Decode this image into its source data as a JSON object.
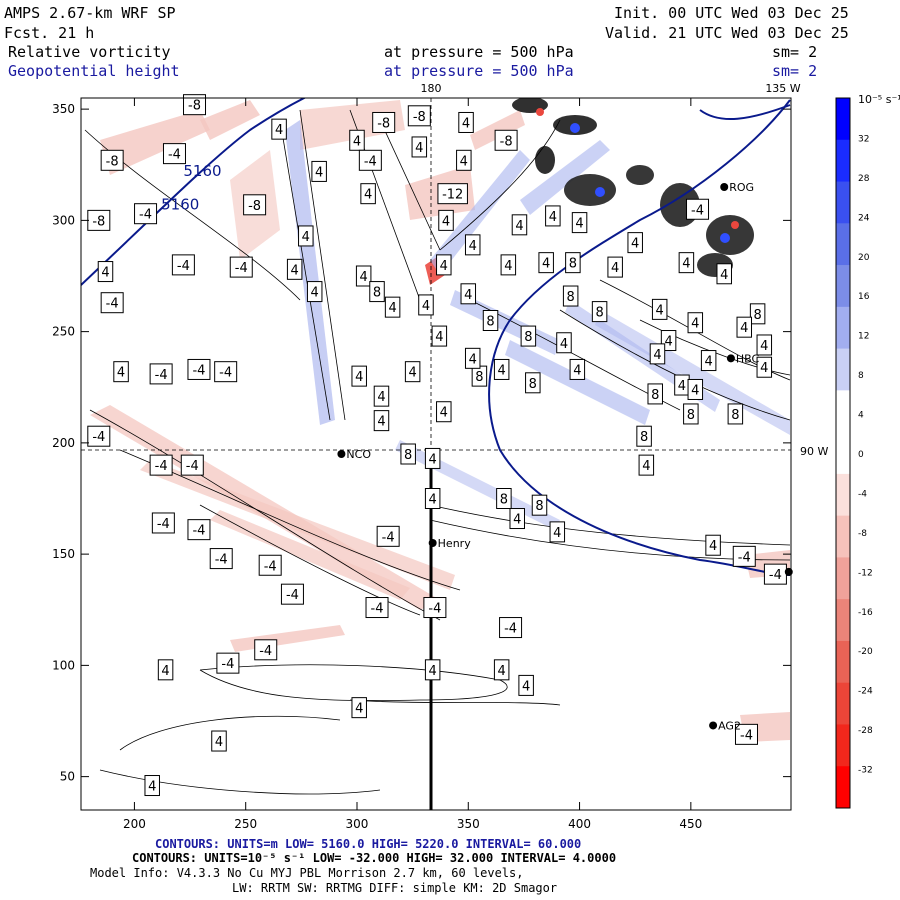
{
  "header": {
    "model": "AMPS 2.67-km WRF SP",
    "fcst": "Fcst.    21 h",
    "init": "Init. 00 UTC Wed 03 Dec 25",
    "valid": "Valid. 21 UTC Wed 03 Dec 25",
    "field1_name": "Relative vorticity",
    "field1_level": "at pressure =  500 hPa",
    "field1_sm": "sm= 2",
    "field2_name": "Geopotential height",
    "field2_level": "at pressure =  500 hPa",
    "field2_sm": "sm= 2"
  },
  "map": {
    "lon_label_top_180": "180",
    "lon_label_top_135": "135 W",
    "lon_label_right_90": "90 W",
    "x_ticks": [
      "200",
      "250",
      "300",
      "350",
      "400",
      "450"
    ],
    "y_ticks": [
      "350",
      "300",
      "250",
      "200",
      "150",
      "100",
      "50"
    ],
    "x_tick_values": [
      200,
      250,
      300,
      350,
      400,
      450
    ],
    "y_tick_values": [
      350,
      300,
      250,
      200,
      150,
      100,
      50
    ],
    "x_range": [
      176,
      495
    ],
    "y_range": [
      35,
      355
    ],
    "stations": [
      {
        "name": "ROG",
        "x": 465,
        "y": 315
      },
      {
        "name": "HBC",
        "x": 468,
        "y": 238
      },
      {
        "name": "NCO",
        "x": 293,
        "y": 195
      },
      {
        "name": "Henry",
        "x": 334,
        "y": 155
      },
      {
        "name": "AG2",
        "x": 460,
        "y": 73
      },
      {
        "name": "",
        "x": 494,
        "y": 142
      }
    ],
    "height_labels": [
      {
        "text": "5160",
        "x": 222,
        "y": 320
      },
      {
        "text": "5160",
        "x": 212,
        "y": 305
      }
    ],
    "vort_labels": [
      {
        "text": "-8",
        "x": 190,
        "y": 327
      },
      {
        "text": "-4",
        "x": 218,
        "y": 330
      },
      {
        "text": "-8",
        "x": 227,
        "y": 352
      },
      {
        "text": "-8",
        "x": 184,
        "y": 300
      },
      {
        "text": "-4",
        "x": 205,
        "y": 303
      },
      {
        "text": "-8",
        "x": 254,
        "y": 307
      },
      {
        "text": "4",
        "x": 265,
        "y": 341
      },
      {
        "text": "-8",
        "x": 312,
        "y": 344
      },
      {
        "text": "-8",
        "x": 328,
        "y": 347
      },
      {
        "text": "4",
        "x": 300,
        "y": 336
      },
      {
        "text": "-4",
        "x": 306,
        "y": 327
      },
      {
        "text": "4",
        "x": 328,
        "y": 333
      },
      {
        "text": "4",
        "x": 349,
        "y": 344
      },
      {
        "text": "-8",
        "x": 367,
        "y": 336
      },
      {
        "text": "4",
        "x": 348,
        "y": 327
      },
      {
        "text": "-12",
        "x": 343,
        "y": 312
      },
      {
        "text": "4",
        "x": 305,
        "y": 312
      },
      {
        "text": "4",
        "x": 283,
        "y": 322
      },
      {
        "text": "4",
        "x": 277,
        "y": 293
      },
      {
        "text": "-4",
        "x": 222,
        "y": 280
      },
      {
        "text": "-4",
        "x": 248,
        "y": 279
      },
      {
        "text": "4",
        "x": 187,
        "y": 277
      },
      {
        "text": "-4",
        "x": 190,
        "y": 263
      },
      {
        "text": "4",
        "x": 272,
        "y": 278
      },
      {
        "text": "4",
        "x": 281,
        "y": 268
      },
      {
        "text": "4",
        "x": 303,
        "y": 275
      },
      {
        "text": "8",
        "x": 309,
        "y": 268
      },
      {
        "text": "4",
        "x": 339,
        "y": 280
      },
      {
        "text": "4",
        "x": 350,
        "y": 267
      },
      {
        "text": "4",
        "x": 316,
        "y": 261
      },
      {
        "text": "4",
        "x": 331,
        "y": 262
      },
      {
        "text": "4",
        "x": 340,
        "y": 300
      },
      {
        "text": "4",
        "x": 352,
        "y": 289
      },
      {
        "text": "4",
        "x": 373,
        "y": 298
      },
      {
        "text": "4",
        "x": 388,
        "y": 302
      },
      {
        "text": "4",
        "x": 385,
        "y": 281
      },
      {
        "text": "4",
        "x": 368,
        "y": 280
      },
      {
        "text": "8",
        "x": 397,
        "y": 281
      },
      {
        "text": "4",
        "x": 400,
        "y": 299
      },
      {
        "text": "4",
        "x": 416,
        "y": 279
      },
      {
        "text": "4",
        "x": 425,
        "y": 290
      },
      {
        "text": "-4",
        "x": 453,
        "y": 305
      },
      {
        "text": "4",
        "x": 448,
        "y": 281
      },
      {
        "text": "4",
        "x": 465,
        "y": 276
      },
      {
        "text": "8",
        "x": 396,
        "y": 266
      },
      {
        "text": "8",
        "x": 409,
        "y": 259
      },
      {
        "text": "4",
        "x": 436,
        "y": 260
      },
      {
        "text": "4",
        "x": 452,
        "y": 254
      },
      {
        "text": "4",
        "x": 440,
        "y": 246
      },
      {
        "text": "8",
        "x": 480,
        "y": 258
      },
      {
        "text": "4",
        "x": 474,
        "y": 252
      },
      {
        "text": "4",
        "x": 458,
        "y": 237
      },
      {
        "text": "4",
        "x": 435,
        "y": 240
      },
      {
        "text": "4",
        "x": 483,
        "y": 244
      },
      {
        "text": "4",
        "x": 483,
        "y": 234
      },
      {
        "text": "8",
        "x": 360,
        "y": 255
      },
      {
        "text": "8",
        "x": 377,
        "y": 248
      },
      {
        "text": "4",
        "x": 393,
        "y": 245
      },
      {
        "text": "8",
        "x": 355,
        "y": 230
      },
      {
        "text": "8",
        "x": 379,
        "y": 227
      },
      {
        "text": "4",
        "x": 365,
        "y": 233
      },
      {
        "text": "4",
        "x": 399,
        "y": 233
      },
      {
        "text": "4",
        "x": 446,
        "y": 226
      },
      {
        "text": "8",
        "x": 434,
        "y": 222
      },
      {
        "text": "8",
        "x": 450,
        "y": 213
      },
      {
        "text": "8",
        "x": 470,
        "y": 213
      },
      {
        "text": "8",
        "x": 429,
        "y": 203
      },
      {
        "text": "4",
        "x": 452,
        "y": 224
      },
      {
        "text": "4",
        "x": 430,
        "y": 190
      },
      {
        "text": "4",
        "x": 337,
        "y": 248
      },
      {
        "text": "4",
        "x": 352,
        "y": 238
      },
      {
        "text": "4",
        "x": 325,
        "y": 232
      },
      {
        "text": "4",
        "x": 311,
        "y": 221
      },
      {
        "text": "4",
        "x": 339,
        "y": 214
      },
      {
        "text": "4",
        "x": 311,
        "y": 210
      },
      {
        "text": "8",
        "x": 323,
        "y": 195
      },
      {
        "text": "4",
        "x": 334,
        "y": 193
      },
      {
        "text": "4",
        "x": 334,
        "y": 175
      },
      {
        "text": "8",
        "x": 366,
        "y": 175
      },
      {
        "text": "8",
        "x": 382,
        "y": 172
      },
      {
        "text": "4",
        "x": 372,
        "y": 166
      },
      {
        "text": "4",
        "x": 390,
        "y": 160
      },
      {
        "text": "4",
        "x": 460,
        "y": 154
      },
      {
        "text": "-4",
        "x": 474,
        "y": 149
      },
      {
        "text": "-4",
        "x": 488,
        "y": 141
      },
      {
        "text": "4",
        "x": 194,
        "y": 232
      },
      {
        "text": "-4",
        "x": 212,
        "y": 231
      },
      {
        "text": "-4",
        "x": 229,
        "y": 233
      },
      {
        "text": "-4",
        "x": 241,
        "y": 232
      },
      {
        "text": "4",
        "x": 301,
        "y": 230
      },
      {
        "text": "-4",
        "x": 184,
        "y": 203
      },
      {
        "text": "-4",
        "x": 212,
        "y": 190
      },
      {
        "text": "-4",
        "x": 226,
        "y": 190
      },
      {
        "text": "-4",
        "x": 213,
        "y": 164
      },
      {
        "text": "-4",
        "x": 229,
        "y": 161
      },
      {
        "text": "-4",
        "x": 239,
        "y": 148
      },
      {
        "text": "-4",
        "x": 261,
        "y": 145
      },
      {
        "text": "-4",
        "x": 271,
        "y": 132
      },
      {
        "text": "-4",
        "x": 314,
        "y": 158
      },
      {
        "text": "-4",
        "x": 309,
        "y": 126
      },
      {
        "text": "-4",
        "x": 335,
        "y": 126
      },
      {
        "text": "-4",
        "x": 369,
        "y": 117
      },
      {
        "text": "-4",
        "x": 259,
        "y": 107
      },
      {
        "text": "-4",
        "x": 242,
        "y": 101
      },
      {
        "text": "4",
        "x": 214,
        "y": 98
      },
      {
        "text": "4",
        "x": 334,
        "y": 98
      },
      {
        "text": "4",
        "x": 365,
        "y": 98
      },
      {
        "text": "4",
        "x": 376,
        "y": 91
      },
      {
        "text": "4",
        "x": 301,
        "y": 81
      },
      {
        "text": "4",
        "x": 238,
        "y": 66
      },
      {
        "text": "4",
        "x": 208,
        "y": 46
      },
      {
        "text": "-4",
        "x": 475,
        "y": 69
      }
    ]
  },
  "colorbar": {
    "unit_label": "10⁻⁵ s⁻¹",
    "levels": [
      "32",
      "28",
      "24",
      "20",
      "16",
      "12",
      "8",
      "4",
      "0",
      "-4",
      "-8",
      "-12",
      "-16",
      "-20",
      "-24",
      "-28",
      "-32"
    ],
    "colors": [
      "#0000ff",
      "#1a2cff",
      "#3a50f0",
      "#5a6fe8",
      "#7c8de8",
      "#a2aef0",
      "#c9d0f5",
      "#ffffff",
      "#ffffff",
      "#fbe0dc",
      "#f6c2bb",
      "#f0a29a",
      "#eb8479",
      "#e96356",
      "#ec4538",
      "#f2271c",
      "#ff0000"
    ]
  },
  "footer": {
    "line1": "CONTOURS:  UNITS=m  LOW=  5160.0       HIGH=  5220.0       INTERVAL=   60.000",
    "line2": "CONTOURS:  UNITS=10⁻⁵ s⁻¹   LOW=  -32.000       HIGH=  32.000     INTERVAL=   4.0000",
    "line3": "Model Info: V4.3.3    No Cu    MYJ PBL   Morrison             2.7 km,  60 levels,",
    "line4": "LW: RRTM SW: RRTMG   DIFF: simple KM: 2D Smagor"
  },
  "colors": {
    "height_contour": "#0a1a8c",
    "positive_shade": "#a9b4ee",
    "negative_shade": "#f4c7c0",
    "strong_negative": "#e8342a",
    "strong_positive": "#1a3cff"
  }
}
